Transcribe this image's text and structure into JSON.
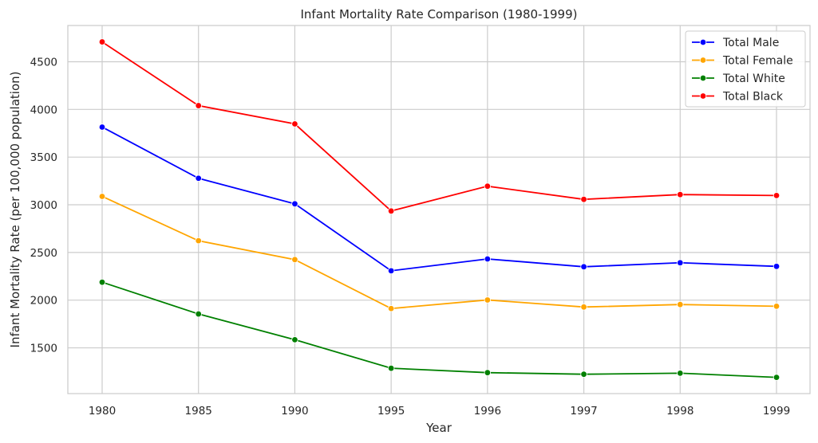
{
  "chart_data": {
    "type": "line",
    "title": "Infant Mortality Rate Comparison (1980-1999)",
    "xlabel": "Year",
    "ylabel": "Infant Mortality Rate (per 100,000 population)",
    "categories": [
      "1980",
      "1985",
      "1990",
      "1995",
      "1996",
      "1997",
      "1998",
      "1999"
    ],
    "ylim": [
      1020,
      4880
    ],
    "yticks": [
      1500,
      2000,
      2500,
      3000,
      3500,
      4000,
      4500
    ],
    "grid": true,
    "legend_position": "top-right",
    "series": [
      {
        "name": "Total Male",
        "color": "#0000ff",
        "values": [
          3815,
          3278,
          3010,
          2308,
          2432,
          2350,
          2392,
          2354
        ]
      },
      {
        "name": "Total Female",
        "color": "#ffa500",
        "values": [
          3088,
          2623,
          2425,
          1912,
          2002,
          1928,
          1954,
          1936
        ]
      },
      {
        "name": "Total White",
        "color": "#008000",
        "values": [
          2188,
          1855,
          1585,
          1286,
          1240,
          1223,
          1234,
          1190
        ]
      },
      {
        "name": "Total Black",
        "color": "#ff0000",
        "values": [
          4708,
          4040,
          3848,
          2935,
          3195,
          3057,
          3107,
          3097
        ]
      }
    ]
  }
}
